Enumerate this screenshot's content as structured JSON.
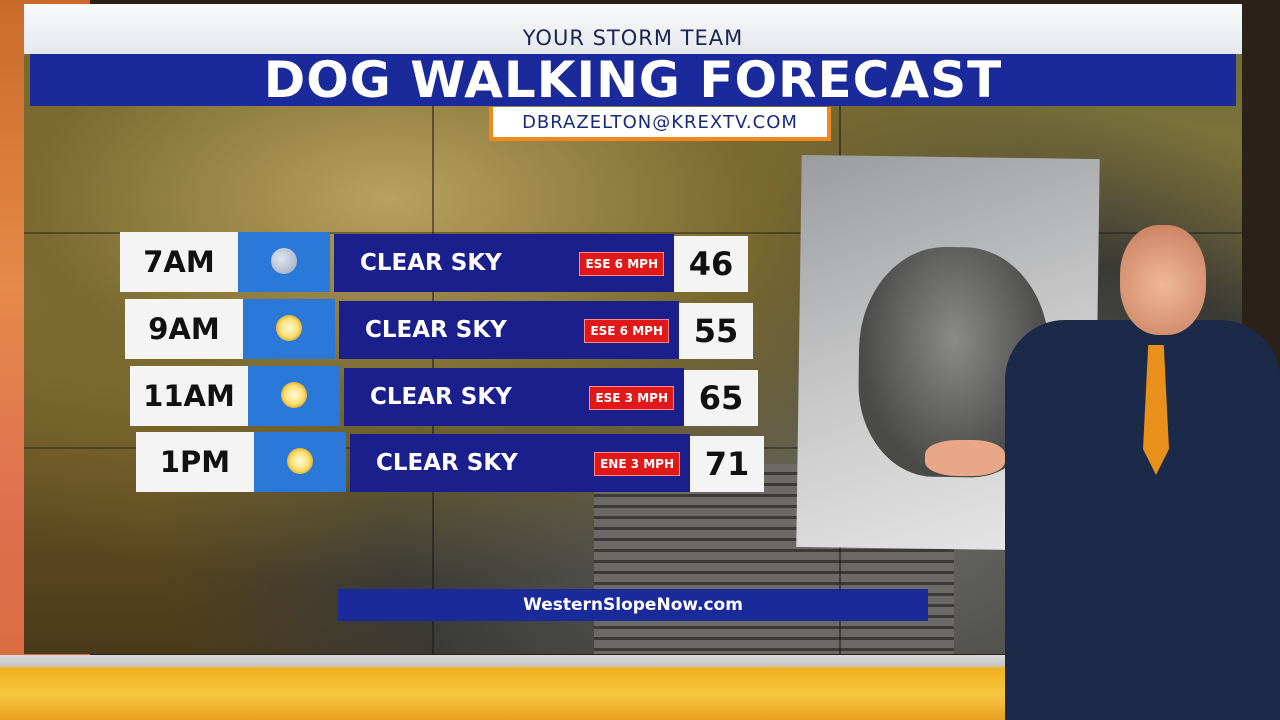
{
  "header": {
    "team": "YOUR STORM TEAM",
    "title": "DOG WALKING FORECAST",
    "email": "DBRAZELTON@KREXTV.COM"
  },
  "forecast": [
    {
      "time": "7AM",
      "icon": "moon-icon",
      "condition": "CLEAR SKY",
      "wind": "ESE 6 MPH",
      "temp": "46"
    },
    {
      "time": "9AM",
      "icon": "sun-icon",
      "condition": "CLEAR SKY",
      "wind": "ESE 6 MPH",
      "temp": "55"
    },
    {
      "time": "11AM",
      "icon": "sun-icon",
      "condition": "CLEAR SKY",
      "wind": "ESE 3 MPH",
      "temp": "65"
    },
    {
      "time": "1PM",
      "icon": "sun-icon",
      "condition": "CLEAR SKY",
      "wind": "ENE 3 MPH",
      "temp": "71"
    }
  ],
  "footer": {
    "website": "WesternSlopeNow.com"
  },
  "colors": {
    "brand_blue": "#1a2a9a",
    "condition_bar": "#1a1f8c",
    "icon_bg": "#2a78d8",
    "wind_badge": "#e01818",
    "email_border": "#f08a20"
  }
}
